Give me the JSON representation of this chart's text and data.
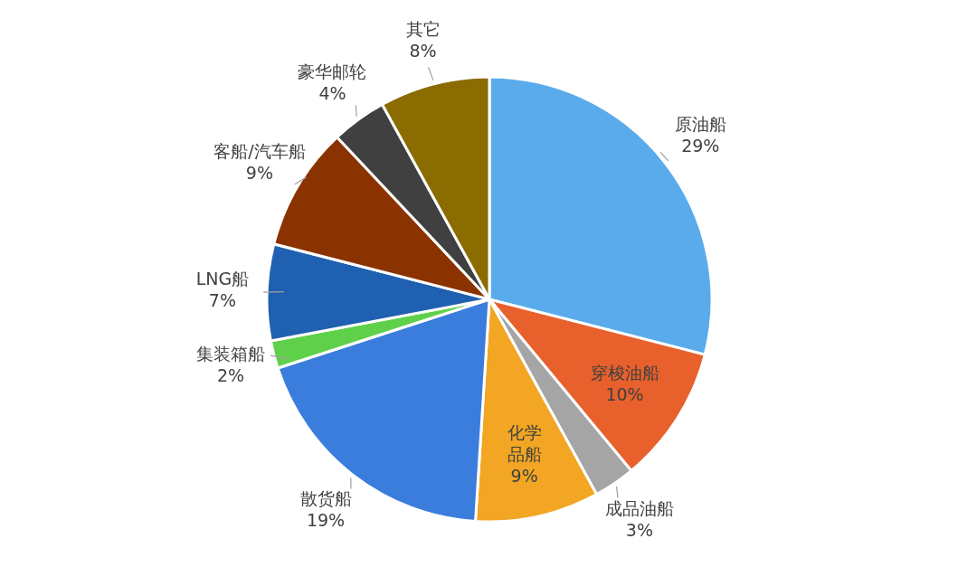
{
  "chart_data": {
    "type": "pie",
    "categories": [
      "原油船",
      "穿梭油船",
      "成品油船",
      "化学品船",
      "散货船",
      "集装箱船",
      "LNG船",
      "客船/汽车船",
      "豪华邮轮",
      "其它"
    ],
    "values": [
      29,
      10,
      3,
      9,
      19,
      2,
      7,
      9,
      4,
      8
    ],
    "value_labels": [
      "29%",
      "10%",
      "3%",
      "9%",
      "19%",
      "2%",
      "7%",
      "9%",
      "4%",
      "8%"
    ],
    "colors": [
      "#5aabec",
      "#e8602c",
      "#a5a5a5",
      "#f2a623",
      "#3b7ddd",
      "#5fd04a",
      "#2060b0",
      "#8b3300",
      "#404040",
      "#8b6c00"
    ]
  }
}
